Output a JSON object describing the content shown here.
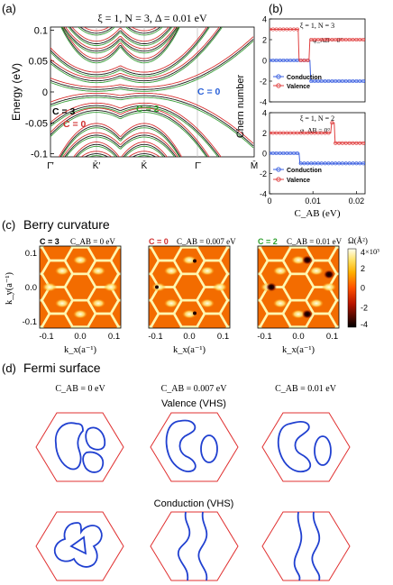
{
  "panel_labels": {
    "a": "(a)",
    "b": "(b)",
    "c": "(c)",
    "d": "(d)"
  },
  "section_titles": {
    "c": "Berry curvature",
    "d": "Fermi surface"
  },
  "panel_a": {
    "title": "ξ = 1, N = 3, Δ = 0.01 eV",
    "ylabel": "Energy (eV)",
    "yticks": [
      "0.1",
      "0.05",
      "0",
      "-0.05",
      "-0.1"
    ],
    "xticks": [
      "Γ̄′",
      "K̄′",
      "K̄",
      "Γ̄",
      "M̄"
    ],
    "annotations": [
      {
        "text": "C = 0",
        "color": "#2b61d8"
      },
      {
        "text": "C = 3",
        "color": "#000000"
      },
      {
        "text": "C = 2",
        "color": "#2ea02e"
      },
      {
        "text": "C = 0",
        "color": "#d03030"
      }
    ],
    "colors": {
      "black": "#1a1a1a",
      "red": "#d83030",
      "green": "#3aa03a"
    }
  },
  "panel_b": {
    "ylabel": "Chern number",
    "xlabel": "C_AB (eV)",
    "top_title": "ξ = 1, N = 3",
    "bottom_title": "ξ = 1, N = 2",
    "phi_label": "φ_AB = 0°",
    "top_yticks": [
      "4",
      "2",
      "0",
      "-2",
      "-4"
    ],
    "bottom_yticks": [
      "4",
      "2",
      "0",
      "-2",
      "-4"
    ],
    "xticks": [
      "0",
      "0.01",
      "0.02"
    ],
    "legend": [
      "Conduction",
      "Valence"
    ],
    "colors": {
      "conduction": "#3a5fe0",
      "valence": "#e04040"
    }
  },
  "panel_c": {
    "ylabel": "k_y(a⁻¹)",
    "xlabel": "k_x(a⁻¹)",
    "yticks": [
      "0.1",
      "0.0",
      "-0.1"
    ],
    "xticks": [
      "-0.1",
      "0.0",
      "0.1"
    ],
    "maps": [
      {
        "chern": "C = 3",
        "chern_color": "#000000",
        "cab": "C_AB = 0 eV"
      },
      {
        "chern": "C = 0",
        "chern_color": "#d03030",
        "cab": "C_AB = 0.007 eV"
      },
      {
        "chern": "C = 2",
        "chern_color": "#2ea02e",
        "cab": "C_AB = 0.01 eV"
      }
    ],
    "colorbar": {
      "label": "Ω(Å²)",
      "scale": "×10³",
      "ticks": [
        "4",
        "2",
        "0",
        "-2",
        "-4"
      ]
    }
  },
  "panel_d": {
    "columns": [
      "C_AB = 0 eV",
      "C_AB = 0.007 eV",
      "C_AB = 0.01 eV"
    ],
    "row_labels": [
      "Valence (VHS)",
      "Conduction (VHS)"
    ],
    "colors": {
      "hexagon": "#e03030",
      "contour": "#2040d0"
    }
  },
  "chart_data": [
    {
      "type": "line",
      "title": "ξ = 1, N = 3, Δ = 0.01 eV",
      "xlabel": "",
      "ylabel": "Energy (eV)",
      "ylim": [
        -0.1,
        0.1
      ],
      "categories": [
        "Γ̄′",
        "K̄′",
        "K̄",
        "Γ̄",
        "M̄"
      ]
    },
    {
      "type": "line",
      "title": "ξ = 1, N = 3",
      "xlabel": "C_AB (eV)",
      "ylabel": "Chern number",
      "xlim": [
        0,
        0.022
      ],
      "ylim": [
        -4,
        4
      ],
      "series": [
        {
          "name": "Conduction",
          "x": [
            0,
            0.0093,
            0.0095,
            0.022
          ],
          "values": [
            0,
            0,
            -2,
            -2
          ]
        },
        {
          "name": "Valence",
          "x": [
            0,
            0.0066,
            0.0068,
            0.0091,
            0.0093,
            0.022
          ],
          "values": [
            3,
            3,
            0,
            0,
            2,
            2
          ]
        }
      ]
    },
    {
      "type": "line",
      "title": "ξ = 1, N = 2",
      "xlabel": "C_AB (eV)",
      "ylabel": "Chern number",
      "xlim": [
        0,
        0.022
      ],
      "ylim": [
        -4,
        4
      ],
      "series": [
        {
          "name": "Conduction",
          "x": [
            0,
            0.0068,
            0.007,
            0.022
          ],
          "values": [
            0,
            0,
            -1,
            -1
          ]
        },
        {
          "name": "Valence",
          "x": [
            0,
            0.0141,
            0.0143,
            0.0149,
            0.0151,
            0.022
          ],
          "values": [
            2,
            2,
            3,
            3,
            1,
            1
          ]
        }
      ]
    },
    {
      "type": "heatmap",
      "title": "Berry curvature",
      "xlabel": "k_x(a⁻¹)",
      "ylabel": "k_y(a⁻¹)",
      "xlim": [
        -0.12,
        0.12
      ],
      "ylim": [
        -0.12,
        0.12
      ],
      "zlim": [
        -4000,
        4000
      ],
      "panels": [
        "C_AB = 0 eV",
        "C_AB = 0.007 eV",
        "C_AB = 0.01 eV"
      ]
    }
  ]
}
